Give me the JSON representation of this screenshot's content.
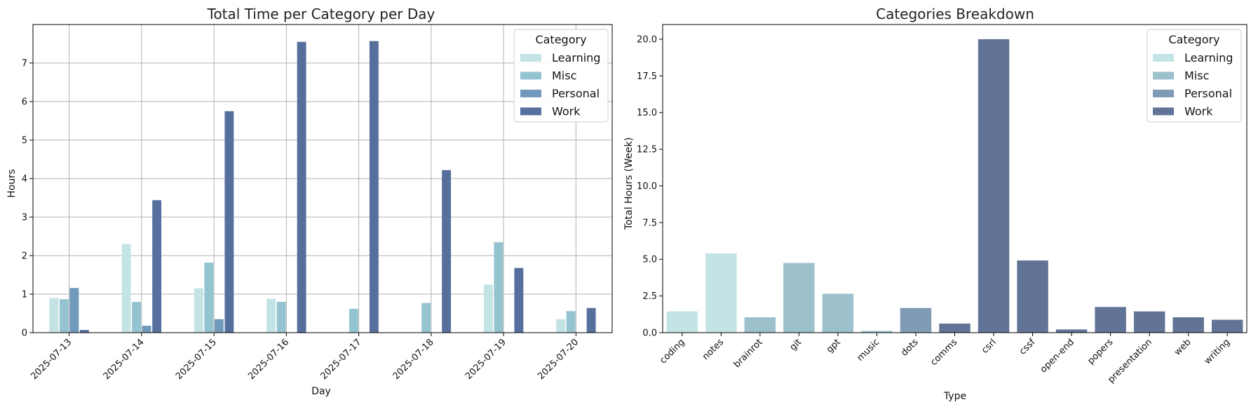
{
  "chart_data": [
    {
      "type": "bar",
      "title": "Total Time per Category per Day",
      "xlabel": "Day",
      "ylabel": "Hours",
      "ylim": [
        0,
        8
      ],
      "yticks": [
        "0",
        "1",
        "2",
        "3",
        "4",
        "5",
        "6",
        "7"
      ],
      "grid": true,
      "legend_title": "Category",
      "legend_position": "top-right",
      "categories": [
        "2025-07-13",
        "2025-07-14",
        "2025-07-15",
        "2025-07-16",
        "2025-07-17",
        "2025-07-18",
        "2025-07-19",
        "2025-07-20"
      ],
      "series": [
        {
          "name": "Learning",
          "color": "#c3e3e5",
          "values": [
            0.9,
            2.3,
            1.15,
            0.88,
            0,
            0,
            1.25,
            0.35
          ]
        },
        {
          "name": "Misc",
          "color": "#95c4d1",
          "values": [
            0.87,
            0.8,
            1.82,
            0.8,
            0.62,
            0.77,
            2.35,
            0.56
          ]
        },
        {
          "name": "Personal",
          "color": "#7199bc",
          "values": [
            1.16,
            0.18,
            0.35,
            0,
            0,
            0,
            0,
            0
          ]
        },
        {
          "name": "Work",
          "color": "#566f9d",
          "values": [
            0.07,
            3.44,
            5.75,
            7.55,
            7.57,
            4.22,
            1.68,
            0.64
          ]
        }
      ]
    },
    {
      "type": "bar",
      "title": "Categories Breakdown",
      "xlabel": "Type",
      "ylabel": "Total Hours (Week)",
      "ylim": [
        0,
        21
      ],
      "yticks": [
        "0.0",
        "2.5",
        "5.0",
        "7.5",
        "10.0",
        "12.5",
        "15.0",
        "17.5",
        "20.0"
      ],
      "grid": false,
      "legend_title": "Category",
      "legend_position": "top-right",
      "legend": [
        {
          "name": "Learning",
          "color": "#c3e3e5"
        },
        {
          "name": "Misc",
          "color": "#9cc1cc"
        },
        {
          "name": "Personal",
          "color": "#7f9bb6"
        },
        {
          "name": "Work",
          "color": "#627496"
        }
      ],
      "bars": [
        {
          "type": "coding",
          "category": "Learning",
          "value": 1.45
        },
        {
          "type": "notes",
          "category": "Learning",
          "value": 5.4
        },
        {
          "type": "brainrot",
          "category": "Misc",
          "value": 1.05
        },
        {
          "type": "git",
          "category": "Misc",
          "value": 4.75
        },
        {
          "type": "gpt",
          "category": "Misc",
          "value": 2.65
        },
        {
          "type": "music",
          "category": "Misc",
          "value": 0.12
        },
        {
          "type": "dots",
          "category": "Personal",
          "value": 1.68
        },
        {
          "type": "comms",
          "category": "Work",
          "value": 0.62
        },
        {
          "type": "csrl",
          "category": "Work",
          "value": 20.0
        },
        {
          "type": "cssf",
          "category": "Work",
          "value": 4.92
        },
        {
          "type": "open-end",
          "category": "Work",
          "value": 0.22
        },
        {
          "type": "popers",
          "category": "Work",
          "value": 1.75
        },
        {
          "type": "presentation",
          "category": "Work",
          "value": 1.45
        },
        {
          "type": "web",
          "category": "Work",
          "value": 1.05
        },
        {
          "type": "writing",
          "category": "Work",
          "value": 0.88
        }
      ]
    }
  ]
}
